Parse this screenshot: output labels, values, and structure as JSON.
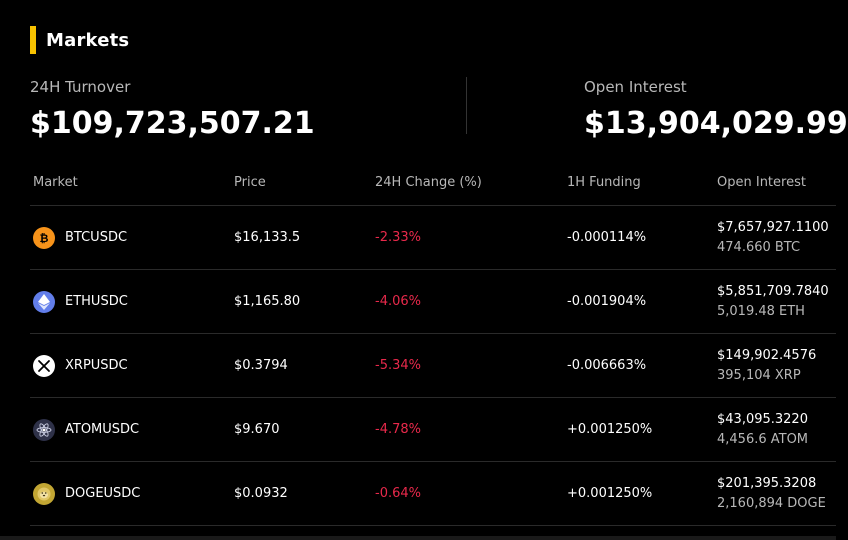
{
  "header": {
    "title": "Markets",
    "accent_color": "#f7c200"
  },
  "stats": {
    "turnover": {
      "label": "24H Turnover",
      "value": "$109,723,507.21"
    },
    "open_interest": {
      "label": "Open Interest",
      "value": "$13,904,029.99"
    }
  },
  "table": {
    "columns": {
      "market": "Market",
      "price": "Price",
      "change": "24H Change (%)",
      "funding": "1H Funding",
      "open_interest": "Open Interest"
    },
    "rows": [
      {
        "market": "BTCUSDC",
        "icon": "bitcoin-icon",
        "icon_color": "#f7931a",
        "price": "$16,133.5",
        "change": "-2.33%",
        "funding": "-0.000114%",
        "oi_value": "$7,657,927.1100",
        "oi_amount": "474.660 BTC"
      },
      {
        "market": "ETHUSDC",
        "icon": "ethereum-icon",
        "icon_color": "#627eea",
        "price": "$1,165.80",
        "change": "-4.06%",
        "funding": "-0.001904%",
        "oi_value": "$5,851,709.7840",
        "oi_amount": "5,019.48 ETH"
      },
      {
        "market": "XRPUSDC",
        "icon": "xrp-icon",
        "icon_color": "#ffffff",
        "price": "$0.3794",
        "change": "-5.34%",
        "funding": "-0.006663%",
        "oi_value": "$149,902.4576",
        "oi_amount": "395,104 XRP"
      },
      {
        "market": "ATOMUSDC",
        "icon": "cosmos-atom-icon",
        "icon_color": "#2e3148",
        "price": "$9.670",
        "change": "-4.78%",
        "funding": "+0.001250%",
        "oi_value": "$43,095.3220",
        "oi_amount": "4,456.6 ATOM"
      },
      {
        "market": "DOGEUSDC",
        "icon": "dogecoin-icon",
        "icon_color": "#c2a633",
        "price": "$0.0932",
        "change": "-0.64%",
        "funding": "+0.001250%",
        "oi_value": "$201,395.3208",
        "oi_amount": "2,160,894 DOGE"
      }
    ]
  },
  "colors": {
    "negative": "#e8294b",
    "muted_text": "#b8b8b8",
    "background": "#000000"
  }
}
